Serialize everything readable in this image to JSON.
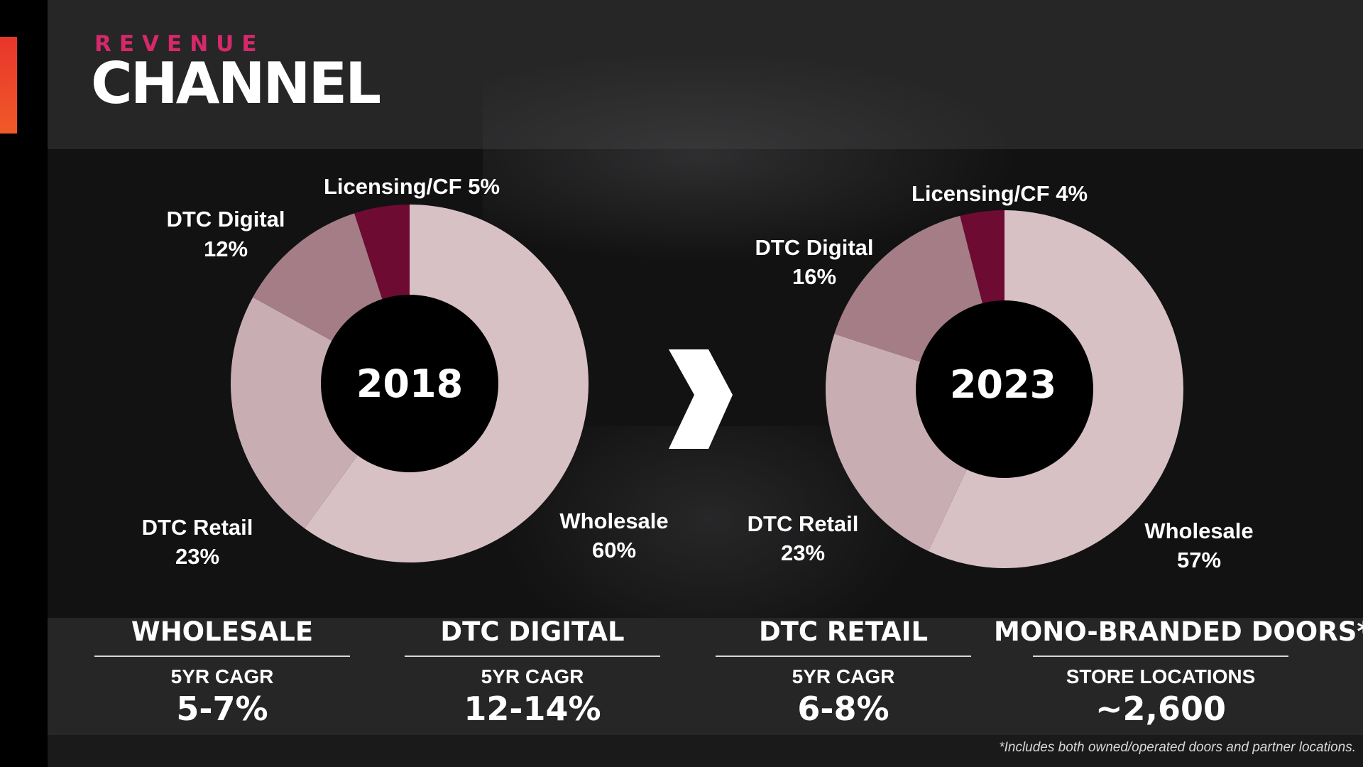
{
  "header": {
    "eyebrow": "REVENUE",
    "title": "CHANNEL"
  },
  "colors": {
    "wholesale": "#d7c1c5",
    "dtc_retail": "#c8aeb3",
    "dtc_digital": "#a57d86",
    "licensing": "#6e0b33",
    "eyebrow": "#d6286a",
    "accent_bar": "#e8352b"
  },
  "chart_data": [
    {
      "type": "pie",
      "center_label": "2018",
      "slices": [
        {
          "name": "Wholesale",
          "value": 60,
          "label": "60%"
        },
        {
          "name": "DTC Retail",
          "value": 23,
          "label": "23%"
        },
        {
          "name": "DTC Digital",
          "value": 12,
          "label": "12%"
        },
        {
          "name": "Licensing/CF",
          "value": 5,
          "label": "5%"
        }
      ],
      "slice_labels": {
        "wholesale_name": "Wholesale",
        "wholesale_value": "60%",
        "retail_name": "DTC Retail",
        "retail_value": "23%",
        "digital_name": "DTC Digital",
        "digital_value": "12%",
        "licensing": "Licensing/CF  5%"
      }
    },
    {
      "type": "pie",
      "center_label": "2023",
      "slices": [
        {
          "name": "Wholesale",
          "value": 57,
          "label": "57%"
        },
        {
          "name": "DTC Retail",
          "value": 23,
          "label": "23%"
        },
        {
          "name": "DTC Digital",
          "value": 16,
          "label": "16%"
        },
        {
          "name": "Licensing/CF",
          "value": 4,
          "label": "4%"
        }
      ],
      "slice_labels": {
        "wholesale_name": "Wholesale",
        "wholesale_value": "57%",
        "retail_name": "DTC Retail",
        "retail_value": "23%",
        "digital_name": "DTC Digital",
        "digital_value": "16%",
        "licensing": "Licensing/CF 4%"
      }
    }
  ],
  "metrics": [
    {
      "title": "WHOLESALE",
      "subtitle": "5YR CAGR",
      "value": "5-7%"
    },
    {
      "title": "DTC DIGITAL",
      "subtitle": "5YR CAGR",
      "value": "12-14%"
    },
    {
      "title": "DTC RETAIL",
      "subtitle": "5YR CAGR",
      "value": "6-8%"
    },
    {
      "title": "MONO-BRANDED DOORS*",
      "subtitle": "STORE LOCATIONS",
      "value": "~2,600"
    }
  ],
  "footnote": "*Includes both owned/operated doors and partner locations.",
  "icons": {
    "transition": "chevron-right-icon"
  }
}
